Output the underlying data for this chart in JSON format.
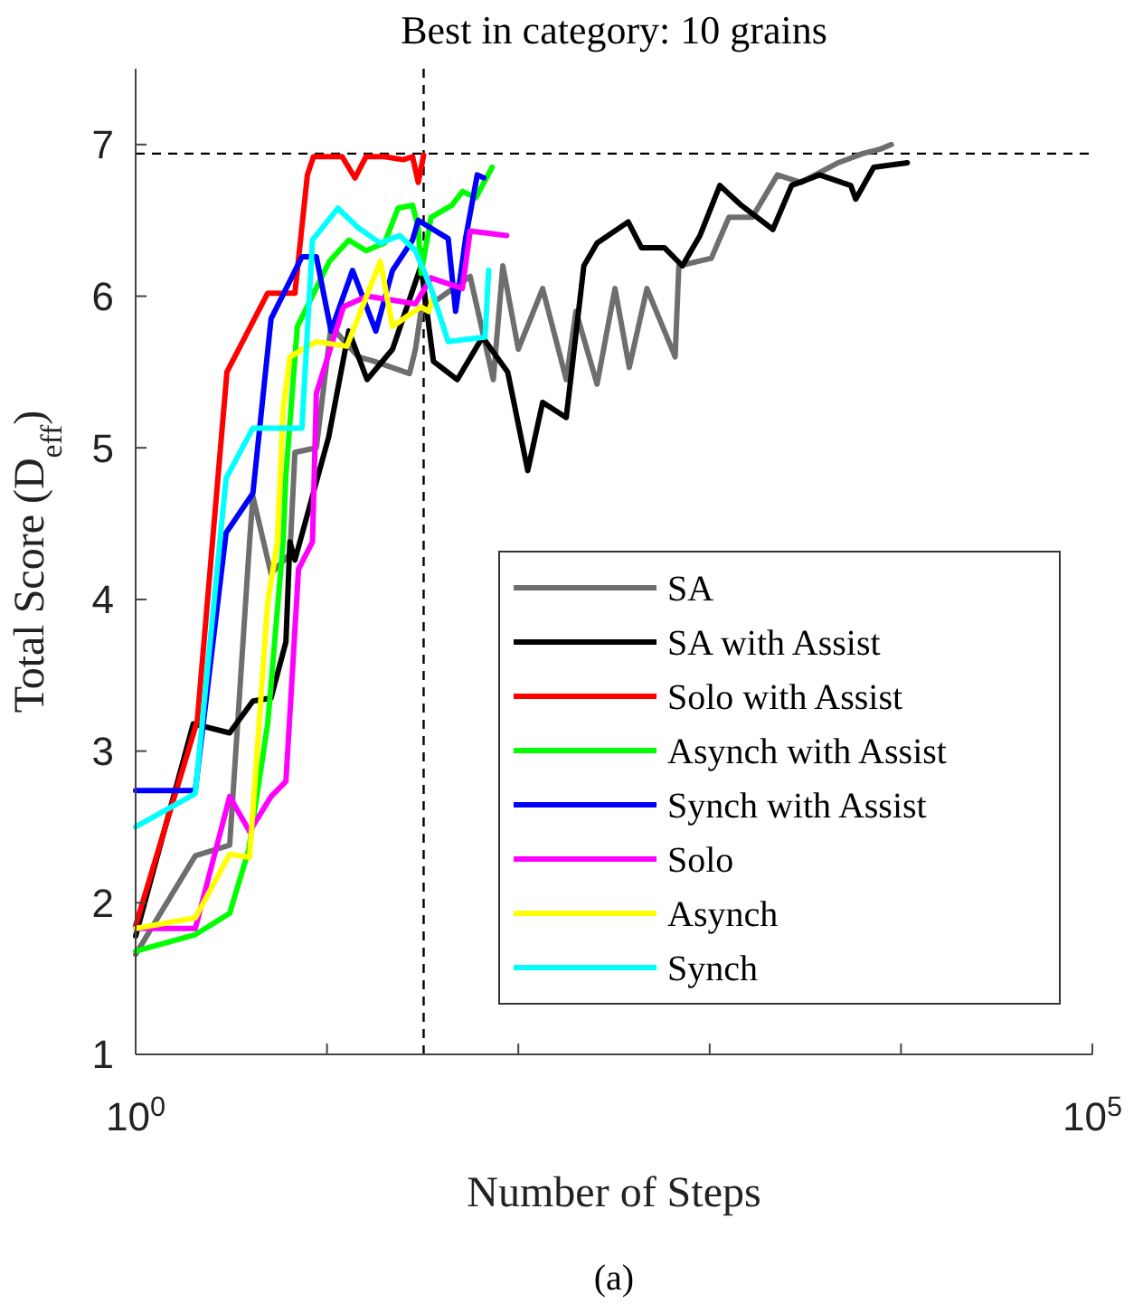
{
  "chart_data": {
    "type": "line",
    "title": "Best in category: 10 grains",
    "xlabel": "Number of Steps",
    "ylabel": "Total Score (D$_{eff}$)",
    "annotations": [
      "(a)"
    ],
    "log": "x",
    "xlim": [
      1,
      100000
    ],
    "ylim": [
      1,
      7.5
    ],
    "xticks": [
      {
        "value": 1,
        "label": "10$^{0}$"
      },
      {
        "value": 10,
        "label": null
      },
      {
        "value": 100,
        "label": null
      },
      {
        "value": 1000,
        "label": null
      },
      {
        "value": 10000,
        "label": null
      },
      {
        "value": 100000,
        "label": "10$^{5}$"
      }
    ],
    "yticks": [
      1,
      2,
      3,
      4,
      5,
      6,
      7
    ],
    "grid": false,
    "legend": "bottom right",
    "line_style": "solid",
    "marker": "none",
    "ref_lines": [
      {
        "axis": "x",
        "value": 32,
        "label": null,
        "color": "#000000",
        "line_style": "dashed"
      },
      {
        "axis": "y",
        "value": 6.94,
        "label": null,
        "color": "#000000",
        "line_style": "dashed"
      }
    ],
    "series": [
      {
        "name": "SA",
        "color": "#6e6e6e",
        "x": [
          1,
          2.05,
          3.1,
          3.94,
          4.1,
          5.1,
          6.4,
          6.8,
          8.8,
          10.5,
          14.6,
          17.7,
          27,
          29,
          31,
          56,
          74,
          83,
          100,
          134,
          178,
          200,
          258,
          320,
          380,
          470,
          660,
          690,
          1020,
          1260,
          1670,
          2260,
          3000,
          4700,
          6300,
          7800,
          8900
        ],
        "values": [
          1.66,
          2.31,
          2.38,
          4.38,
          4.68,
          4.17,
          4.3,
          4.97,
          5.0,
          5.8,
          5.6,
          5.57,
          5.49,
          5.65,
          5.9,
          6.13,
          5.45,
          6.2,
          5.65,
          6.05,
          5.45,
          5.9,
          5.42,
          6.05,
          5.53,
          6.05,
          5.6,
          6.2,
          6.25,
          6.52,
          6.52,
          6.8,
          6.75,
          6.88,
          6.94,
          6.97,
          7.0
        ]
      },
      {
        "name": "SA with Assist",
        "color": "#000000",
        "x": [
          1,
          2,
          3.1,
          4.1,
          5.1,
          6.1,
          6.4,
          6.8,
          10.2,
          13,
          16.2,
          22,
          31,
          36,
          48,
          65,
          88,
          112,
          134,
          178,
          220,
          258,
          375,
          440,
          580,
          720,
          890,
          1130,
          1460,
          2140,
          2680,
          3750,
          5460,
          5800,
          7200,
          10800
        ],
        "values": [
          1.78,
          3.18,
          3.12,
          3.33,
          3.35,
          3.72,
          4.38,
          4.26,
          5.07,
          5.77,
          5.45,
          5.65,
          6.2,
          5.57,
          5.45,
          5.73,
          5.5,
          4.85,
          5.3,
          5.2,
          6.2,
          6.35,
          6.49,
          6.32,
          6.32,
          6.2,
          6.4,
          6.73,
          6.6,
          6.44,
          6.73,
          6.8,
          6.73,
          6.64,
          6.85,
          6.88
        ]
      },
      {
        "name": "Solo with Assist",
        "color": "#ff0000",
        "x": [
          1,
          2.1,
          3,
          4.9,
          6.8,
          7.9,
          8.5,
          12,
          14,
          16,
          20,
          25,
          28,
          30,
          32
        ],
        "values": [
          1.85,
          3.2,
          5.5,
          6.02,
          6.02,
          6.8,
          6.92,
          6.92,
          6.78,
          6.92,
          6.92,
          6.9,
          6.92,
          6.75,
          6.93
        ]
      },
      {
        "name": "Asynch with Assist",
        "color": "#00ff00",
        "x": [
          1,
          2.05,
          3.1,
          3.9,
          4.9,
          5.9,
          6.1,
          7,
          10.3,
          13,
          16,
          20,
          23.5,
          28,
          30,
          31,
          35,
          45,
          51,
          60,
          73
        ],
        "values": [
          1.68,
          1.79,
          1.93,
          2.35,
          3.18,
          4.38,
          4.82,
          5.8,
          6.23,
          6.37,
          6.3,
          6.35,
          6.58,
          6.6,
          6.45,
          6.15,
          6.52,
          6.6,
          6.69,
          6.65,
          6.85
        ]
      },
      {
        "name": "Synch with Assist",
        "color": "#0000ff",
        "x": [
          1,
          2.05,
          2.97,
          4.1,
          5.1,
          7.4,
          8.8,
          10.5,
          13.6,
          18,
          22,
          28,
          30,
          43,
          47,
          53,
          61,
          66
        ],
        "values": [
          2.74,
          2.74,
          4.44,
          4.7,
          5.85,
          6.26,
          6.26,
          5.77,
          6.17,
          5.77,
          6.17,
          6.37,
          6.5,
          6.38,
          5.9,
          6.38,
          6.8,
          6.78
        ]
      },
      {
        "name": "Solo",
        "color": "#ff00ff",
        "x": [
          1,
          2.05,
          3.1,
          3.94,
          5.1,
          6.1,
          7.1,
          8.4,
          8.8,
          12.2,
          16.2,
          29,
          35,
          51,
          56,
          87
        ],
        "values": [
          1.83,
          1.83,
          2.7,
          2.47,
          2.7,
          2.8,
          4.2,
          4.38,
          5.36,
          5.93,
          6.0,
          5.95,
          6.12,
          6.05,
          6.43,
          6.4
        ]
      },
      {
        "name": "Asynch",
        "color": "#ffff00",
        "x": [
          1,
          2.05,
          3.1,
          3.94,
          4.9,
          5.5,
          5.9,
          6.4,
          8.8,
          12.7,
          19,
          22,
          31,
          34,
          36
        ],
        "values": [
          1.83,
          1.9,
          2.32,
          2.3,
          3.98,
          4.38,
          5.25,
          5.6,
          5.7,
          5.67,
          6.23,
          5.8,
          5.93,
          5.9,
          6.0
        ]
      },
      {
        "name": "Synch",
        "color": "#00ffff",
        "x": [
          1,
          2.05,
          2.97,
          4.1,
          7.4,
          8.4,
          11.4,
          14.6,
          19,
          24,
          29,
          35,
          43,
          67,
          70
        ],
        "values": [
          2.5,
          2.72,
          4.8,
          5.13,
          5.13,
          6.37,
          6.58,
          6.45,
          6.35,
          6.4,
          6.3,
          6.05,
          5.7,
          5.73,
          6.17
        ]
      }
    ]
  }
}
